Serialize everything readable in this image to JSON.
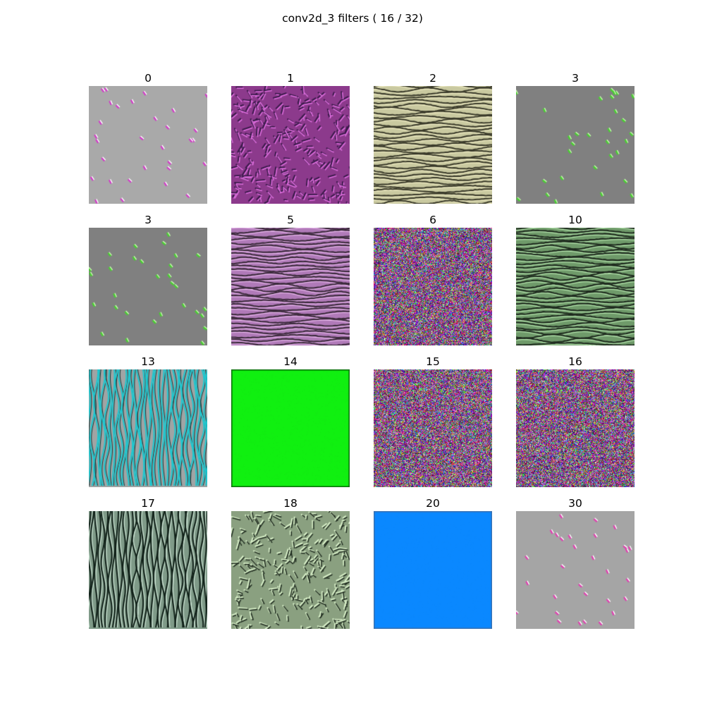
{
  "figure": {
    "title": "conv2d_3 filters ( 16 / 32)"
  },
  "filters": [
    {
      "label": "0",
      "pattern": "sparse",
      "base": "#a9a9a9",
      "accent": "#d23cc8",
      "accent2": "#ffffff"
    },
    {
      "label": "1",
      "pattern": "worms",
      "base": "#8c3a8c",
      "accent": "#e070e0",
      "accent2": "#3a1a4a"
    },
    {
      "label": "2",
      "pattern": "hwaves",
      "base": "#c9c9a0",
      "accent": "#3a3a2a",
      "accent2": "#f4f0c8"
    },
    {
      "label": "3",
      "pattern": "sparse",
      "base": "#808080",
      "accent": "#48d030",
      "accent2": "#c8ffb0"
    },
    {
      "label": "3",
      "pattern": "sparse",
      "base": "#808080",
      "accent": "#48d030",
      "accent2": "#c8ffb0"
    },
    {
      "label": "5",
      "pattern": "hwaves",
      "base": "#b07ab8",
      "accent": "#3a2a3a",
      "accent2": "#f0c0f4"
    },
    {
      "label": "6",
      "pattern": "noise",
      "base": "#7f7f7f",
      "accent": "#ff00ff",
      "accent2": "#00ff00"
    },
    {
      "label": "10",
      "pattern": "hwaves",
      "base": "#6f9a6a",
      "accent": "#1e2a1e",
      "accent2": "#c0f0b8"
    },
    {
      "label": "13",
      "pattern": "vwaves",
      "base": "#a0a4a4",
      "accent": "#1ec8d0",
      "accent2": "#1a3a3a"
    },
    {
      "label": "14",
      "pattern": "solid",
      "base": "#10f010",
      "accent": "#22e022",
      "accent2": "#0a6a0a"
    },
    {
      "label": "15",
      "pattern": "noise",
      "base": "#7f7f7f",
      "accent": "#ff00ff",
      "accent2": "#00ff00"
    },
    {
      "label": "16",
      "pattern": "noise",
      "base": "#7f7f7f",
      "accent": "#ff00ff",
      "accent2": "#00ff00"
    },
    {
      "label": "17",
      "pattern": "vwaves",
      "base": "#7f9a88",
      "accent": "#102018",
      "accent2": "#d8f0e0"
    },
    {
      "label": "18",
      "pattern": "worms",
      "base": "#8aa080",
      "accent": "#1e2a1e",
      "accent2": "#d8f0c8"
    },
    {
      "label": "20",
      "pattern": "solid",
      "base": "#0a88ff",
      "accent": "#1a90f8",
      "accent2": "#3a70b0"
    },
    {
      "label": "30",
      "pattern": "sparse",
      "base": "#a5a5a5",
      "accent": "#e040b0",
      "accent2": "#ffffff"
    }
  ]
}
